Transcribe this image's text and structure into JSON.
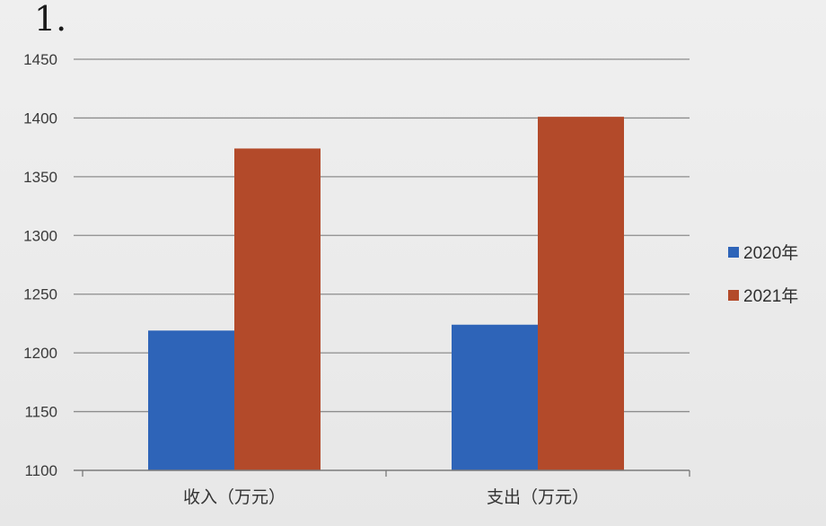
{
  "page_number": "1.",
  "colors": {
    "series_2020": "#2e64b8",
    "series_2021": "#b34a2a",
    "gridline": "#8c8c8c",
    "axis": "#7a7a7a"
  },
  "chart_data": {
    "type": "bar",
    "categories": [
      "收入（万元）",
      "支出（万元）"
    ],
    "series": [
      {
        "name": "2020年",
        "values": [
          1219,
          1224
        ]
      },
      {
        "name": "2021年",
        "values": [
          1374,
          1401
        ]
      }
    ],
    "yticks": [
      "1100",
      "1150",
      "1200",
      "1250",
      "1300",
      "1350",
      "1400",
      "1450"
    ],
    "ylim": [
      1100,
      1450
    ],
    "grid": true,
    "legend_position": "right"
  }
}
